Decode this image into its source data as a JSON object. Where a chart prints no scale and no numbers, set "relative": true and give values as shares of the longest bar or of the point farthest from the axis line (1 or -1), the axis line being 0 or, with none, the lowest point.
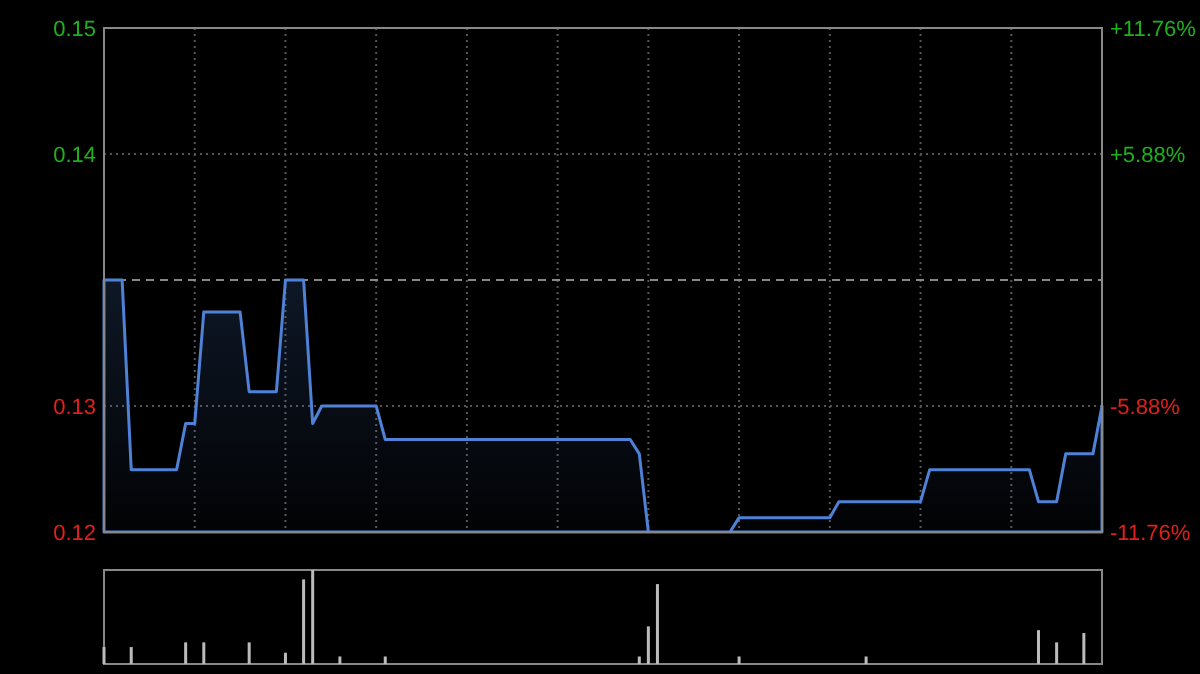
{
  "chart_data": [
    {
      "type": "area",
      "categories": [
        null,
        null,
        null,
        null,
        null,
        null,
        null,
        null,
        null,
        null,
        null,
        null,
        null,
        null,
        null,
        null,
        null,
        null,
        null,
        null,
        null,
        null,
        null,
        null,
        null,
        null,
        null,
        null,
        null,
        null,
        null,
        null,
        null,
        null,
        null,
        null,
        null,
        null,
        null,
        null,
        null,
        null,
        null,
        null,
        null,
        null,
        null,
        null,
        null,
        null,
        null,
        null,
        null,
        null,
        null,
        null,
        null,
        null,
        null,
        null,
        null,
        null,
        null,
        null,
        null,
        null,
        null,
        null,
        null,
        null,
        null,
        null,
        null,
        null,
        null,
        null,
        null,
        null,
        null,
        null,
        null,
        null,
        null,
        null,
        null,
        null,
        null,
        null,
        null,
        null,
        null,
        null,
        null,
        null,
        null,
        null,
        null,
        null,
        null,
        null,
        null,
        null,
        null,
        null,
        null,
        null,
        null,
        null,
        null,
        null,
        null
      ],
      "ylim": [
        0.1184,
        0.15
      ],
      "yticks": [
        {
          "value": 0.1184,
          "label": "0.12"
        },
        {
          "value": 0.1263,
          "label": "0.13"
        },
        {
          "value": 0.1421,
          "label": "0.14"
        },
        {
          "value": 0.15,
          "label": "0.15"
        }
      ],
      "y2lim": [
        -11.76,
        11.76
      ],
      "y2ticks": [
        {
          "value": -11.76,
          "label": "-11.76%"
        },
        {
          "value": -5.88,
          "label": "-5.88%"
        },
        {
          "value": 5.88,
          "label": "+5.88%"
        },
        {
          "value": 11.76,
          "label": "+11.76%"
        }
      ],
      "grid": true,
      "ref_lines": [
        {
          "axis": "y",
          "value": 0.1342,
          "label": null,
          "line_style": "dashed"
        }
      ],
      "series": [
        {
          "color": "#4f82d6",
          "values": [
            0.1342,
            0.1342,
            0.1342,
            0.1223,
            0.1223,
            0.1223,
            0.1223,
            0.1223,
            0.1223,
            0.1252,
            0.1252,
            0.1322,
            0.1322,
            0.1322,
            0.1322,
            0.1322,
            0.1272,
            0.1272,
            0.1272,
            0.1272,
            0.1342,
            0.1342,
            0.1342,
            0.1252,
            0.1263,
            0.1263,
            0.1263,
            0.1263,
            0.1263,
            0.1263,
            0.1263,
            0.1242,
            0.1242,
            0.1242,
            0.1242,
            0.1242,
            0.1242,
            0.1242,
            0.1242,
            0.1242,
            0.1242,
            0.1242,
            0.1242,
            0.1242,
            0.1242,
            0.1242,
            0.1242,
            0.1242,
            0.1242,
            0.1242,
            0.1242,
            0.1242,
            0.1242,
            0.1242,
            0.1242,
            0.1242,
            0.1242,
            0.1242,
            0.1242,
            0.1233,
            0.1184,
            0.1184,
            0.1184,
            0.1184,
            0.1184,
            0.1184,
            0.1184,
            0.1184,
            0.1184,
            0.1184,
            0.1193,
            0.1193,
            0.1193,
            0.1193,
            0.1193,
            0.1193,
            0.1193,
            0.1193,
            0.1193,
            0.1193,
            0.1193,
            0.1203,
            0.1203,
            0.1203,
            0.1203,
            0.1203,
            0.1203,
            0.1203,
            0.1203,
            0.1203,
            0.1203,
            0.1223,
            0.1223,
            0.1223,
            0.1223,
            0.1223,
            0.1223,
            0.1223,
            0.1223,
            0.1223,
            0.1223,
            0.1223,
            0.1223,
            0.1203,
            0.1203,
            0.1203,
            0.1233,
            0.1233,
            0.1233,
            0.1233,
            0.1263
          ]
        }
      ]
    },
    {
      "type": "bar",
      "relative": true,
      "color": "#bbbbbb",
      "categories": [
        null,
        null,
        null,
        null,
        null,
        null,
        null,
        null,
        null,
        null,
        null,
        null,
        null,
        null,
        null,
        null,
        null,
        null,
        null,
        null,
        null,
        null,
        null,
        null,
        null,
        null,
        null,
        null,
        null,
        null,
        null,
        null,
        null,
        null,
        null,
        null,
        null,
        null,
        null,
        null,
        null,
        null,
        null,
        null,
        null,
        null,
        null,
        null,
        null,
        null,
        null,
        null,
        null,
        null,
        null,
        null,
        null,
        null,
        null,
        null,
        null,
        null,
        null,
        null,
        null,
        null,
        null,
        null,
        null,
        null,
        null,
        null,
        null,
        null,
        null,
        null,
        null,
        null,
        null,
        null,
        null,
        null,
        null,
        null,
        null,
        null,
        null,
        null,
        null,
        null,
        null,
        null,
        null,
        null,
        null,
        null,
        null,
        null,
        null,
        null,
        null,
        null,
        null,
        null,
        null,
        null,
        null,
        null,
        null,
        null,
        null
      ],
      "values": [
        0.18,
        0,
        0,
        0.18,
        0,
        0,
        0,
        0,
        0,
        0.23,
        0,
        0.23,
        0,
        0,
        0,
        0,
        0.23,
        0,
        0,
        0,
        0.12,
        0,
        0.9,
        1,
        0,
        0,
        0.08,
        0,
        0,
        0,
        0,
        0.08,
        0,
        0,
        0,
        0,
        0,
        0,
        0,
        0,
        0,
        0,
        0,
        0,
        0,
        0,
        0,
        0,
        0,
        0,
        0,
        0,
        0,
        0,
        0,
        0,
        0,
        0,
        0,
        0.08,
        0.4,
        0.85,
        0,
        0,
        0,
        0,
        0,
        0,
        0,
        0,
        0.08,
        0,
        0,
        0,
        0,
        0,
        0,
        0,
        0,
        0,
        0,
        0,
        0,
        0,
        0.08,
        0,
        0,
        0,
        0,
        0,
        0,
        0,
        0,
        0,
        0,
        0,
        0,
        0,
        0,
        0,
        0,
        0,
        0,
        0.36,
        0,
        0.23,
        0,
        0,
        0.33,
        0,
        0
      ]
    }
  ]
}
